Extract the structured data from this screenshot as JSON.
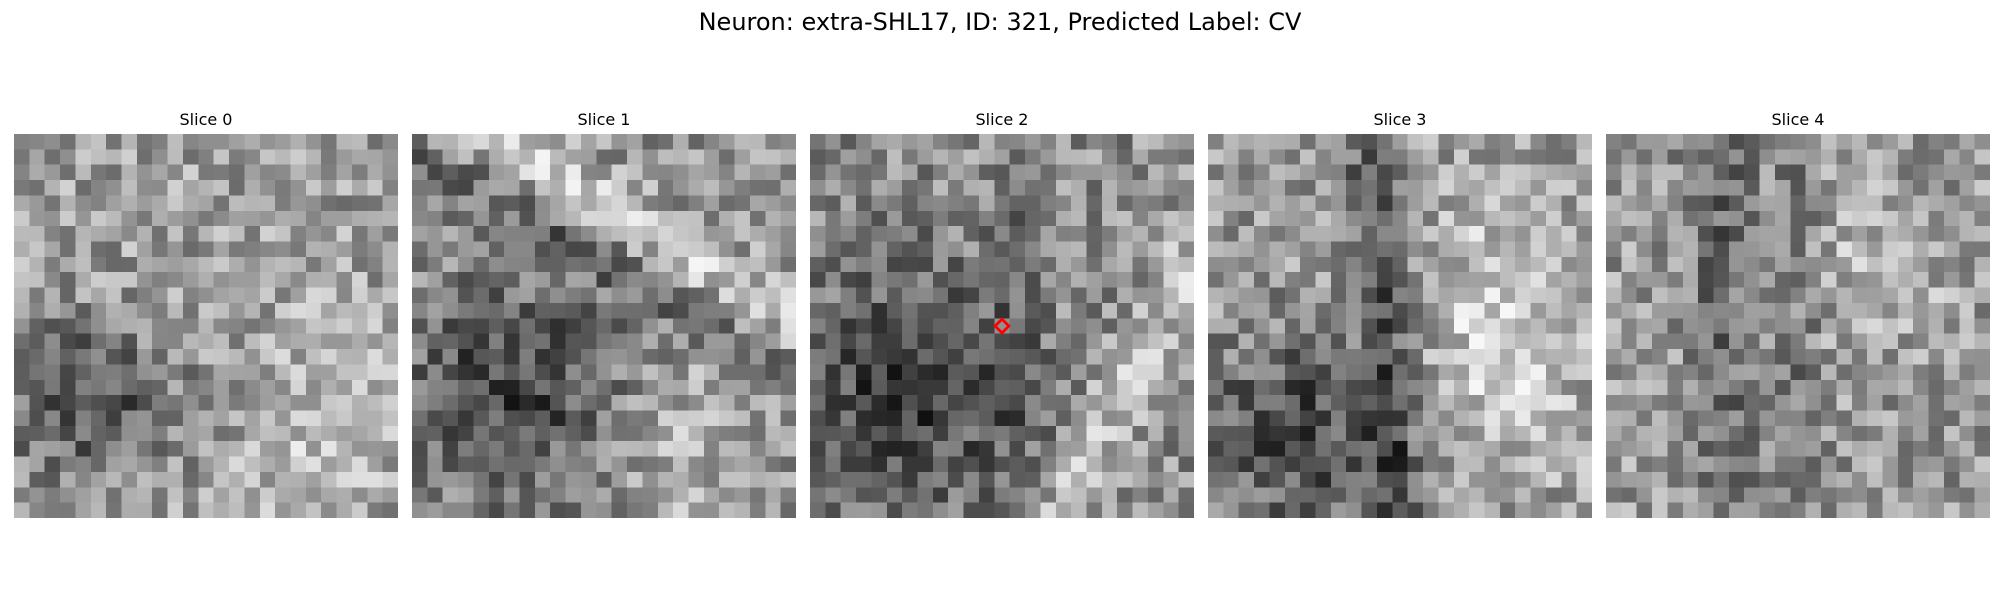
{
  "figure": {
    "title": "Neuron: extra-SHL17, ID: 321, Predicted Label: CV"
  },
  "panels": [
    {
      "label": "Slice 0"
    },
    {
      "label": "Slice 1"
    },
    {
      "label": "Slice 2"
    },
    {
      "label": "Slice 3"
    },
    {
      "label": "Slice 4"
    }
  ],
  "marker": {
    "slice_index": 2,
    "color": "#ff0000",
    "shape": "diamond",
    "pixel_row": 12.0,
    "pixel_col": 12.0
  },
  "image": {
    "grid_size": 25,
    "colormap": "gray"
  }
}
